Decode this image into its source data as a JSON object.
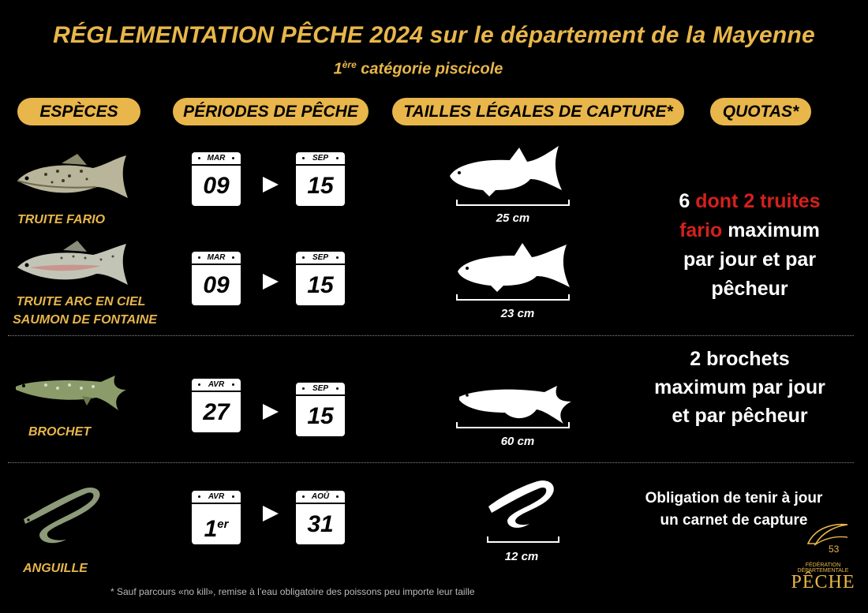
{
  "title": "RÉGLEMENTATION PÊCHE 2024 sur le département de la Mayenne",
  "subtitle_main": "1",
  "subtitle_sup": "ère",
  "subtitle_rest": " catégorie piscicole",
  "headers": {
    "species": "ESPÈCES",
    "periods": "PÉRIODES DE PÊCHE",
    "sizes": "TAILLES LÉGALES DE CAPTURE*",
    "quotas": "QUOTAS*"
  },
  "rows": [
    {
      "name": "TRUITE FARIO",
      "start_month": "MAR",
      "start_day": "09",
      "end_month": "SEP",
      "end_day": "15",
      "size": "25 cm"
    },
    {
      "name_line1": "TRUITE ARC EN CIEL",
      "name_line2": "SAUMON DE FONTAINE",
      "start_month": "MAR",
      "start_day": "09",
      "end_month": "SEP",
      "end_day": "15",
      "size": "23 cm"
    },
    {
      "name": "BROCHET",
      "start_month": "AVR",
      "start_day": "27",
      "end_month": "SEP",
      "end_day": "15",
      "size": "60 cm"
    },
    {
      "name": "ANGUILLE",
      "start_month": "AVR",
      "start_day": "1",
      "start_day_sup": "er",
      "end_month": "AOÛ",
      "end_day": "31",
      "size": "12 cm"
    }
  ],
  "quotas": {
    "trout_a": "6",
    "trout_b": "dont 2 truites",
    "trout_c": "fario",
    "trout_d": "maximum",
    "trout_e": "par jour et par",
    "trout_f": "pêcheur",
    "pike_1": "2 brochets",
    "pike_2": "maximum par jour",
    "pike_3": "et par pêcheur",
    "eel_1": "Obligation de tenir à jour",
    "eel_2": "un carnet de capture"
  },
  "footnote": "*  Sauf parcours «no kill», remise à l’eau obligatoire des poissons peu importe leur taille",
  "logo": {
    "number": "53",
    "line": "FÉDÉRATION DÉPARTEMENTALE",
    "word": "PÊCHE"
  },
  "colors": {
    "gold": "#e8b64a",
    "red": "#d5201c",
    "background": "#000000"
  }
}
